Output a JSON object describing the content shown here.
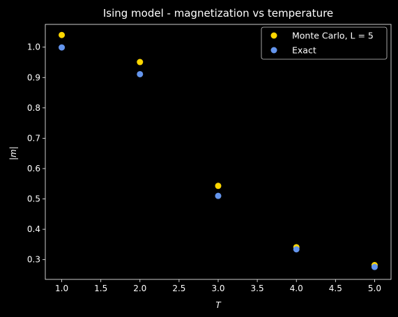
{
  "chart_data": {
    "type": "scatter",
    "title": "Ising model -  magnetization vs temperature",
    "xlabel": "T",
    "ylabel": "|m|",
    "xlim": [
      0.79,
      5.21
    ],
    "ylim": [
      0.235,
      1.075
    ],
    "xticks": [
      1.0,
      1.5,
      2.0,
      2.5,
      3.0,
      3.5,
      4.0,
      4.5,
      5.0
    ],
    "xtick_labels": [
      "1.0",
      "1.5",
      "2.0",
      "2.5",
      "3.0",
      "3.5",
      "4.0",
      "4.5",
      "5.0"
    ],
    "yticks": [
      0.3,
      0.4,
      0.5,
      0.6,
      0.7,
      0.8,
      0.9,
      1.0
    ],
    "ytick_labels": [
      "0.3",
      "0.4",
      "0.5",
      "0.6",
      "0.7",
      "0.8",
      "0.9",
      "1.0"
    ],
    "grid": false,
    "legend_position": "top-right",
    "background": "#000000",
    "series": [
      {
        "name": "Monte Carlo, L = 5",
        "color": "#ffd700",
        "x": [
          1,
          2,
          3,
          4,
          5
        ],
        "y": [
          1.04,
          0.951,
          0.543,
          0.341,
          0.282
        ]
      },
      {
        "name": "Exact",
        "color": "#6495ed",
        "x": [
          1,
          2,
          3,
          4,
          5
        ],
        "y": [
          0.999,
          0.911,
          0.51,
          0.334,
          0.276
        ]
      }
    ]
  }
}
